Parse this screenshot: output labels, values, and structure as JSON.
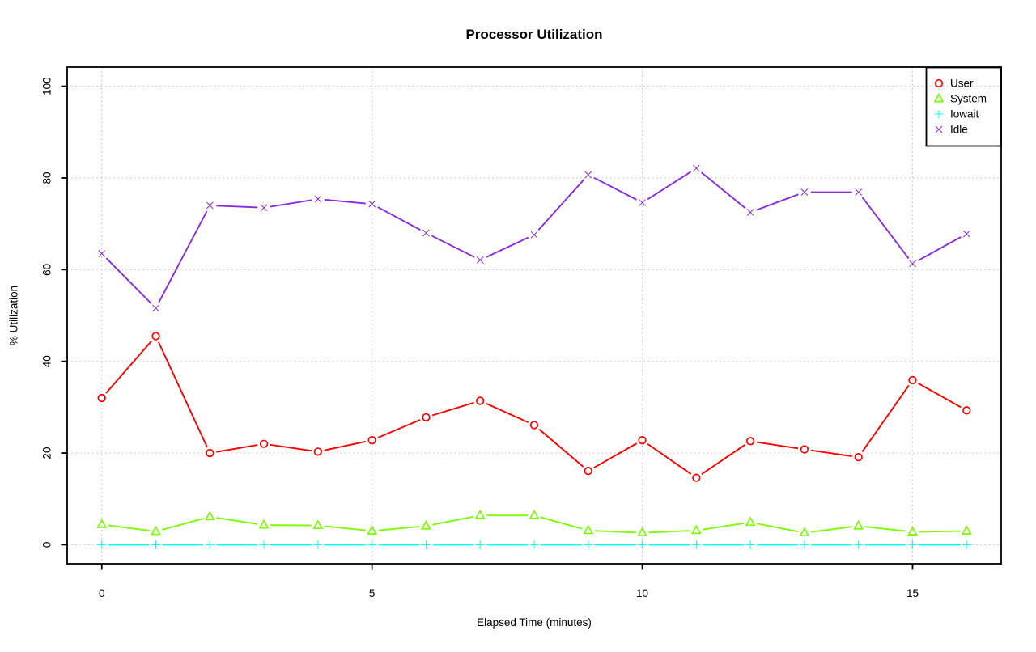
{
  "chart_data": {
    "type": "line",
    "title": "Processor Utilization",
    "xlabel": "Elapsed Time (minutes)",
    "ylabel": "% Utilization",
    "x": [
      0,
      1,
      2,
      3,
      4,
      5,
      6,
      7,
      8,
      9,
      10,
      11,
      12,
      13,
      14,
      15,
      16
    ],
    "xticks": [
      0,
      5,
      10,
      15
    ],
    "yticks": [
      0,
      20,
      40,
      60,
      80,
      100
    ],
    "xlim": [
      -0.64,
      16.64
    ],
    "ylim": [
      -4.16,
      104.16
    ],
    "grid": true,
    "grid_color": "#c6c6c6",
    "legend_position": "top-right",
    "series": [
      {
        "name": "User",
        "marker": "circle",
        "color": "#ff0000",
        "values": [
          32.0,
          45.5,
          20.0,
          22.0,
          20.3,
          22.8,
          27.8,
          31.4,
          26.1,
          16.1,
          22.8,
          14.6,
          22.6,
          20.8,
          19.1,
          35.9,
          29.3
        ]
      },
      {
        "name": "System",
        "marker": "triangle",
        "color": "#7cfc00",
        "values": [
          4.4,
          2.9,
          6.1,
          4.3,
          4.2,
          3.0,
          4.1,
          6.4,
          6.4,
          3.1,
          2.6,
          3.1,
          4.9,
          2.6,
          4.1,
          2.8,
          3.0
        ]
      },
      {
        "name": "Iowait",
        "marker": "plus",
        "color": "#00ffff",
        "values": [
          0,
          0,
          0,
          0,
          0,
          0,
          0,
          0,
          0,
          0,
          0,
          0,
          0,
          0,
          0,
          0,
          0
        ]
      },
      {
        "name": "Idle",
        "marker": "x",
        "color": "#8a2be2",
        "values": [
          63.5,
          51.6,
          74.0,
          73.5,
          75.4,
          74.3,
          68.0,
          62.1,
          67.6,
          80.7,
          74.6,
          82.1,
          72.5,
          76.9,
          76.9,
          61.3,
          67.8
        ]
      }
    ]
  }
}
